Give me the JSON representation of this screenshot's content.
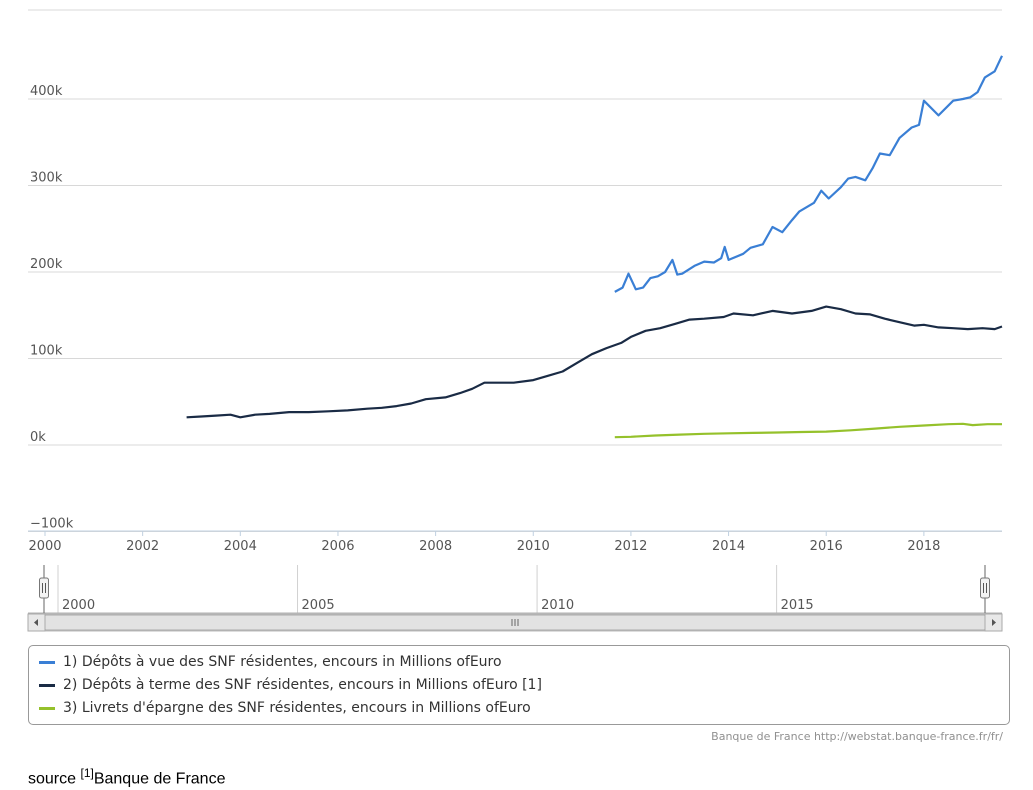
{
  "chart_data": {
    "type": "line",
    "y_ticks": [
      "400k",
      "300k",
      "200k",
      "100k",
      "0k",
      "−100k"
    ],
    "y_tick_values": [
      400000,
      300000,
      200000,
      100000,
      0,
      -100000
    ],
    "ylim": [
      -100000,
      500000
    ],
    "xlim": [
      2000,
      2019.6
    ],
    "x_ticks": [
      "2000",
      "2002",
      "2004",
      "2006",
      "2008",
      "2010",
      "2012",
      "2014",
      "2016",
      "2018"
    ],
    "x_tick_values": [
      2000,
      2002,
      2004,
      2006,
      2008,
      2010,
      2012,
      2014,
      2016,
      2018
    ],
    "grid": true,
    "legend_position": "bottom",
    "series": [
      {
        "name": "1) Dépôts à vue des SNF résidentes, encours in Millions ofEuro",
        "color": "#3a7fd5",
        "x": [
          2011.67,
          2011.83,
          2011.95,
          2012.1,
          2012.25,
          2012.4,
          2012.55,
          2012.7,
          2012.85,
          2012.95,
          2013.05,
          2013.3,
          2013.5,
          2013.7,
          2013.85,
          2013.92,
          2014.0,
          2014.3,
          2014.45,
          2014.7,
          2014.9,
          2015.1,
          2015.3,
          2015.45,
          2015.75,
          2015.9,
          2016.05,
          2016.3,
          2016.45,
          2016.6,
          2016.8,
          2016.95,
          2017.1,
          2017.3,
          2017.5,
          2017.75,
          2017.9,
          2018.0,
          2018.3,
          2018.6,
          2018.8,
          2018.95,
          2019.1,
          2019.25,
          2019.45,
          2019.6
        ],
        "values": [
          177000,
          182000,
          198000,
          180000,
          182000,
          193000,
          195000,
          200000,
          214000,
          197000,
          198000,
          207000,
          212000,
          211000,
          216000,
          229000,
          214000,
          221000,
          228000,
          232000,
          252000,
          246000,
          260000,
          270000,
          280000,
          294000,
          285000,
          298000,
          308000,
          310000,
          306000,
          320000,
          337000,
          335000,
          355000,
          367000,
          370000,
          398000,
          381000,
          398000,
          400000,
          402000,
          408000,
          425000,
          432000,
          450000
        ]
      },
      {
        "name": "2) Dépôts à terme des SNF résidentes, encours in Millions ofEuro [1]",
        "color": "#1a2b45",
        "x": [
          2002.9,
          2003.2,
          2003.5,
          2003.8,
          2004.0,
          2004.3,
          2004.6,
          2005.0,
          2005.4,
          2005.8,
          2006.2,
          2006.6,
          2006.9,
          2007.2,
          2007.5,
          2007.8,
          2008.2,
          2008.5,
          2008.75,
          2009.0,
          2009.3,
          2009.6,
          2010.0,
          2010.3,
          2010.6,
          2010.9,
          2011.2,
          2011.5,
          2011.8,
          2012.0,
          2012.3,
          2012.6,
          2012.9,
          2013.2,
          2013.5,
          2013.9,
          2014.1,
          2014.5,
          2014.9,
          2015.3,
          2015.7,
          2016.0,
          2016.3,
          2016.6,
          2016.9,
          2017.2,
          2017.5,
          2017.8,
          2018.0,
          2018.3,
          2018.6,
          2018.9,
          2019.2,
          2019.45,
          2019.6
        ],
        "values": [
          32000,
          33000,
          34000,
          35000,
          32000,
          35000,
          36000,
          38000,
          38000,
          39000,
          40000,
          42000,
          43000,
          45000,
          48000,
          53000,
          55000,
          60000,
          65000,
          72000,
          72000,
          72000,
          75000,
          80000,
          85000,
          95000,
          105000,
          112000,
          118000,
          125000,
          132000,
          135000,
          140000,
          145000,
          146000,
          148000,
          152000,
          150000,
          155000,
          152000,
          155000,
          160000,
          157000,
          152000,
          151000,
          146000,
          142000,
          138000,
          139000,
          136000,
          135000,
          134000,
          135000,
          134000,
          137000
        ]
      },
      {
        "name": "3) Livrets d'épargne des SNF résidentes, encours in Millions ofEuro",
        "color": "#95c12b",
        "x": [
          2011.67,
          2012.0,
          2012.5,
          2013.0,
          2013.5,
          2014.0,
          2014.5,
          2015.0,
          2015.5,
          2016.0,
          2016.5,
          2017.0,
          2017.5,
          2018.0,
          2018.5,
          2018.8,
          2019.0,
          2019.3,
          2019.6
        ],
        "values": [
          9000,
          9500,
          11000,
          12000,
          13000,
          13500,
          14000,
          14500,
          15000,
          15500,
          17000,
          19000,
          21000,
          22500,
          24000,
          24500,
          23000,
          24000,
          24000
        ]
      }
    ],
    "navigator": {
      "labels": [
        "2000",
        "2005",
        "2010",
        "2015"
      ],
      "label_values": [
        2000,
        2005,
        2010,
        2015
      ],
      "range": [
        2000,
        2019.6
      ]
    },
    "credits": "Banque de France http://webstat.banque-france.fr/fr/"
  },
  "source": {
    "prefix": "source",
    "ref": "[1]",
    "text": "Banque de France"
  }
}
